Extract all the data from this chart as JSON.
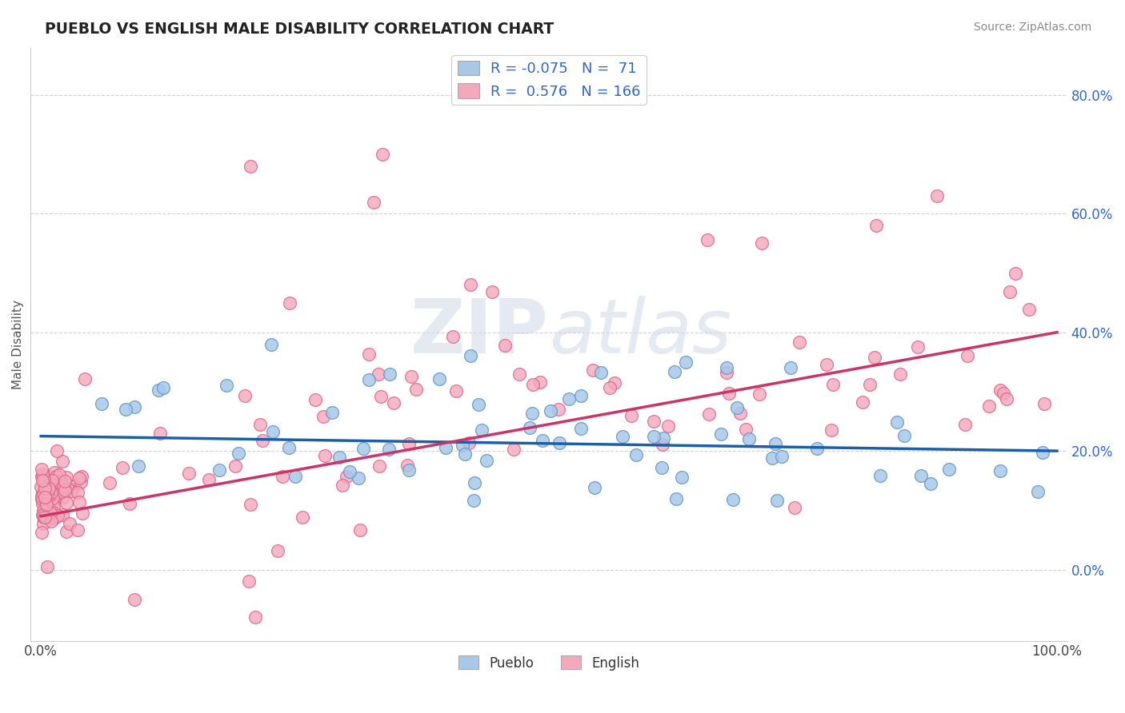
{
  "title": "PUEBLO VS ENGLISH MALE DISABILITY CORRELATION CHART",
  "source": "Source: ZipAtlas.com",
  "ylabel": "Male Disability",
  "pueblo_color": "#a8c8e8",
  "english_color": "#f4a8bc",
  "pueblo_edge": "#6699cc",
  "english_edge": "#dd6688",
  "trend_blue": "#1a5fa8",
  "trend_pink": "#cc3366",
  "pueblo_R": -0.075,
  "pueblo_N": 71,
  "english_R": 0.576,
  "english_N": 166,
  "legend_text_color": "#3366cc",
  "background_color": "#ffffff",
  "grid_color": "#cccccc",
  "watermark_color": "#d0d8e8",
  "title_color": "#222222",
  "source_color": "#888888",
  "ylabel_color": "#555555"
}
